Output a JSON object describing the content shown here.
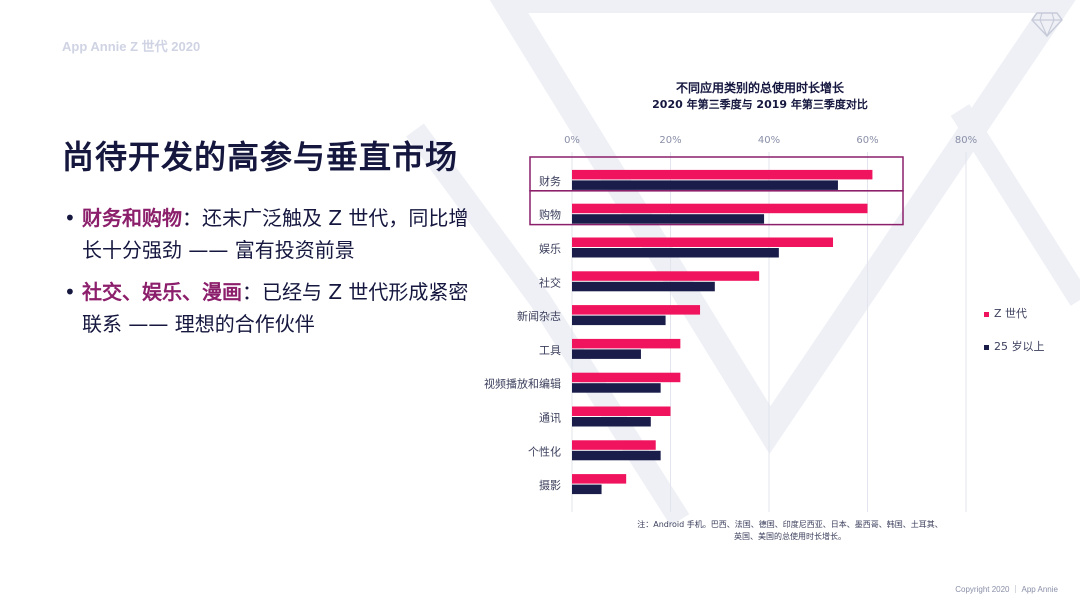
{
  "header": {
    "brand": "App Annie Z 世代 2020"
  },
  "title": "尚待开发的高参与垂直市场",
  "bullets": [
    {
      "highlight": "财务和购物",
      "text": "：还未广泛触及 Z 世代，同比增长十分强劲 —— 富有投资前景"
    },
    {
      "highlight": "社交、娱乐、漫画",
      "text": "：已经与 Z 世代形成紧密联系 —— 理想的合作伙伴"
    }
  ],
  "footer": "Copyright 2020 ｜ App Annie",
  "colors": {
    "gen_z": "#f0135d",
    "over25": "#1a1d4a",
    "accent": "#8c1f6b",
    "grid": "#e3e5ee"
  },
  "icons": [
    "diamond-logo-icon"
  ],
  "chart_data": {
    "type": "bar",
    "orientation": "horizontal",
    "title": "不同应用类别的总使用时长增长",
    "subtitle": "2020 年第三季度与 2019 年第三季度对比",
    "categories": [
      "财务",
      "购物",
      "娱乐",
      "社交",
      "新闻杂志",
      "工具",
      "视频播放和编辑",
      "通讯",
      "个性化",
      "摄影"
    ],
    "series": [
      {
        "name": "Z 世代",
        "color": "#f0135d",
        "values": [
          61,
          60,
          53,
          38,
          26,
          22,
          22,
          20,
          17,
          11
        ]
      },
      {
        "name": "25 岁以上",
        "color": "#1a1d4a",
        "values": [
          54,
          39,
          42,
          29,
          19,
          14,
          18,
          16,
          18,
          6
        ]
      }
    ],
    "xlim": [
      0,
      80
    ],
    "xticks": [
      "0%",
      "20%",
      "40%",
      "60%",
      "80%"
    ],
    "highlighted_categories": [
      "财务",
      "购物"
    ],
    "legend_position": "right",
    "note": "注：Android 手机。巴西、法国、德国、印度尼西亚、日本、墨西哥、韩国、土耳其、英国、美国的总使用时长增长。"
  }
}
